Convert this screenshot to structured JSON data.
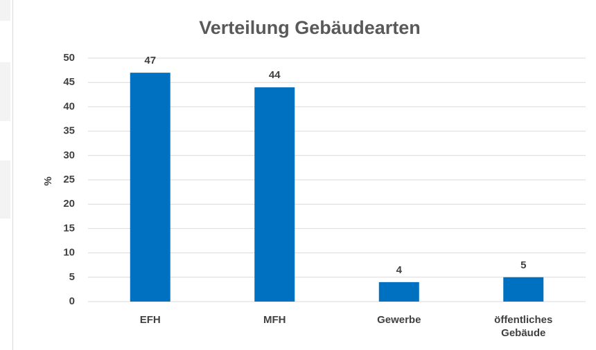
{
  "chart_data": {
    "type": "bar",
    "title": "Verteilung Gebäudearten",
    "y_label": "%",
    "categories": [
      "EFH",
      "MFH",
      "Gewerbe",
      "öffentliches Gebäude"
    ],
    "values": [
      47,
      44,
      4,
      5
    ],
    "color": "#0070c0",
    "ylim": [
      0,
      50
    ],
    "yticks": [
      0,
      5,
      10,
      15,
      20,
      25,
      30,
      35,
      40,
      45,
      50
    ],
    "grid": true
  }
}
